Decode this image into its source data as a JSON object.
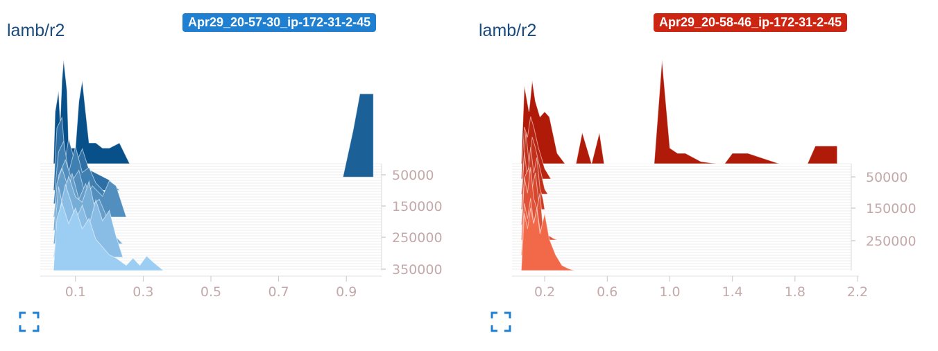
{
  "chart_data": [
    {
      "type": "histogram-offset",
      "title": "lamb/r2",
      "run": "Apr29_20-57-30_ip-172-31-2-45",
      "run_color": "#1f7fd0",
      "color_back": "#08508a",
      "color_front": "#9ccdf2",
      "xlim": [
        0.0,
        1.0
      ],
      "x_ticks": [
        0.1,
        0.3,
        0.5,
        0.7,
        0.9
      ],
      "step_ticks": [
        50000,
        150000,
        250000,
        350000
      ],
      "grid": true,
      "layers": [
        {
          "x": [
            0.035,
            0.04,
            0.05,
            0.055,
            0.06,
            0.065,
            0.075,
            0.08,
            0.1,
            0.11,
            0.12,
            0.13,
            0.14,
            0.16,
            0.18,
            0.2,
            0.23,
            0.26
          ],
          "y": [
            0.0,
            0.5,
            0.7,
            0.4,
            0.8,
            1.0,
            0.7,
            0.15,
            0.15,
            0.6,
            0.8,
            0.5,
            0.2,
            0.2,
            0.15,
            0.15,
            0.2,
            0.0
          ]
        },
        {
          "x": [
            0.89,
            0.92,
            0.94,
            0.98,
            0.98
          ],
          "y": [
            0.0,
            0.45,
            0.8,
            0.8,
            0.0
          ]
        },
        {
          "x": [
            0.035,
            0.045,
            0.06,
            0.07,
            0.08,
            0.1,
            0.12,
            0.14,
            0.17,
            0.2,
            0.23
          ],
          "y": [
            0.0,
            0.6,
            0.7,
            0.3,
            0.5,
            0.25,
            0.4,
            0.2,
            0.15,
            0.1,
            0.0
          ]
        },
        {
          "x": [
            0.035,
            0.05,
            0.065,
            0.08,
            0.1,
            0.12,
            0.14,
            0.16,
            0.19,
            0.22
          ],
          "y": [
            0.0,
            0.5,
            0.6,
            0.3,
            0.55,
            0.3,
            0.35,
            0.2,
            0.1,
            0.0
          ]
        },
        {
          "x": [
            0.035,
            0.05,
            0.07,
            0.09,
            0.11,
            0.13,
            0.15,
            0.18,
            0.2,
            0.22,
            0.25
          ],
          "y": [
            0.0,
            0.4,
            0.55,
            0.35,
            0.45,
            0.2,
            0.3,
            0.2,
            0.35,
            0.3,
            0.0
          ]
        },
        {
          "x": [
            0.035,
            0.045,
            0.06,
            0.08,
            0.09,
            0.11,
            0.13,
            0.15,
            0.17,
            0.19,
            0.21
          ],
          "y": [
            0.0,
            0.45,
            0.6,
            0.4,
            0.55,
            0.3,
            0.45,
            0.25,
            0.3,
            0.15,
            0.0
          ]
        },
        {
          "x": [
            0.035,
            0.05,
            0.06,
            0.08,
            0.1,
            0.12,
            0.14,
            0.16,
            0.18,
            0.21,
            0.24
          ],
          "y": [
            0.0,
            0.55,
            0.4,
            0.65,
            0.45,
            0.4,
            0.6,
            0.3,
            0.2,
            0.1,
            0.0
          ]
        },
        {
          "x": [
            0.035,
            0.05,
            0.07,
            0.09,
            0.1,
            0.12,
            0.14,
            0.16,
            0.18,
            0.2,
            0.22,
            0.24
          ],
          "y": [
            0.0,
            0.4,
            0.7,
            0.5,
            0.35,
            0.5,
            0.3,
            0.55,
            0.35,
            0.45,
            0.2,
            0.0
          ]
        },
        {
          "x": [
            0.035,
            0.045,
            0.06,
            0.08,
            0.1,
            0.12,
            0.14,
            0.16,
            0.2,
            0.22,
            0.25,
            0.27,
            0.29,
            0.31,
            0.33,
            0.36
          ],
          "y": [
            0.0,
            0.5,
            0.65,
            0.45,
            0.6,
            0.4,
            0.5,
            0.3,
            0.15,
            0.12,
            0.05,
            0.12,
            0.05,
            0.14,
            0.08,
            0.0
          ]
        }
      ]
    },
    {
      "type": "histogram-offset",
      "title": "lamb/r2",
      "run": "Apr29_20-58-46_ip-172-31-2-45",
      "run_color": "#cc2612",
      "color_back": "#b01a08",
      "color_front": "#f2694a",
      "xlim": [
        0.0,
        2.2
      ],
      "x_ticks": [
        0.2,
        0.6,
        1.0,
        1.4,
        1.8,
        2.2
      ],
      "x_tick_labels": [
        "0.2",
        "0.6",
        "1.0",
        "1.4",
        "1.8",
        "2.2"
      ],
      "step_ticks": [
        50000,
        150000,
        250000
      ],
      "grid": true,
      "layers": [
        {
          "x": [
            0.05,
            0.07,
            0.1,
            0.12,
            0.14,
            0.17,
            0.2,
            0.23,
            0.28,
            0.33,
            0.37,
            0.4,
            0.44,
            0.47,
            0.5,
            0.55,
            0.58,
            0.62,
            0.66,
            0.7,
            0.75,
            0.8,
            0.85,
            0.9,
            0.95,
            1.0,
            1.05,
            1.1,
            1.2,
            1.3,
            1.35,
            1.4,
            1.5,
            1.6,
            1.7,
            1.78,
            1.82,
            1.88,
            1.93,
            2.07,
            2.07
          ],
          "y": [
            0.0,
            0.75,
            0.5,
            0.8,
            0.6,
            0.45,
            0.5,
            0.45,
            0.1,
            0.0,
            0.0,
            0.0,
            0.3,
            0.15,
            0.0,
            0.3,
            0.0,
            0.0,
            0.0,
            0.0,
            0.0,
            0.0,
            0.0,
            0.0,
            1.0,
            0.15,
            0.1,
            0.1,
            0.02,
            0.0,
            0.0,
            0.1,
            0.1,
            0.05,
            0.0,
            0.0,
            0.0,
            0.0,
            0.17,
            0.17,
            0.0
          ]
        },
        {
          "x": [
            0.05,
            0.07,
            0.09,
            0.11,
            0.13,
            0.16,
            0.2,
            0.24
          ],
          "y": [
            0.0,
            0.5,
            0.4,
            0.6,
            0.5,
            0.3,
            0.1,
            0.0
          ]
        },
        {
          "x": [
            0.05,
            0.08,
            0.1,
            0.12,
            0.14,
            0.17,
            0.2,
            0.22
          ],
          "y": [
            0.0,
            0.6,
            0.3,
            0.55,
            0.45,
            0.25,
            0.05,
            0.0
          ]
        },
        {
          "x": [
            0.05,
            0.07,
            0.09,
            0.11,
            0.13,
            0.15,
            0.17,
            0.19,
            0.2
          ],
          "y": [
            0.0,
            0.55,
            0.3,
            0.6,
            0.35,
            0.5,
            0.2,
            0.1,
            0.0
          ]
        },
        {
          "x": [
            0.05,
            0.07,
            0.1,
            0.12,
            0.14,
            0.16,
            0.18,
            0.2
          ],
          "y": [
            0.0,
            0.45,
            0.55,
            0.35,
            0.5,
            0.25,
            0.05,
            0.0
          ]
        },
        {
          "x": [
            0.05,
            0.07,
            0.09,
            0.11,
            0.13,
            0.15,
            0.17,
            0.19,
            0.22,
            0.25,
            0.28
          ],
          "y": [
            0.0,
            0.6,
            0.45,
            0.7,
            0.4,
            0.3,
            0.45,
            0.1,
            0.05,
            0.02,
            0.0
          ]
        },
        {
          "x": [
            0.05,
            0.07,
            0.09,
            0.11,
            0.13,
            0.15,
            0.17,
            0.19,
            0.21,
            0.23
          ],
          "y": [
            0.0,
            0.5,
            0.35,
            0.55,
            0.3,
            0.45,
            0.25,
            0.15,
            0.05,
            0.0
          ]
        },
        {
          "x": [
            0.05,
            0.07,
            0.09,
            0.11,
            0.13,
            0.15,
            0.17,
            0.2,
            0.23,
            0.27,
            0.31,
            0.35,
            0.39
          ],
          "y": [
            0.0,
            0.55,
            0.4,
            0.6,
            0.45,
            0.6,
            0.35,
            0.55,
            0.3,
            0.15,
            0.05,
            0.02,
            0.0
          ]
        }
      ]
    }
  ]
}
